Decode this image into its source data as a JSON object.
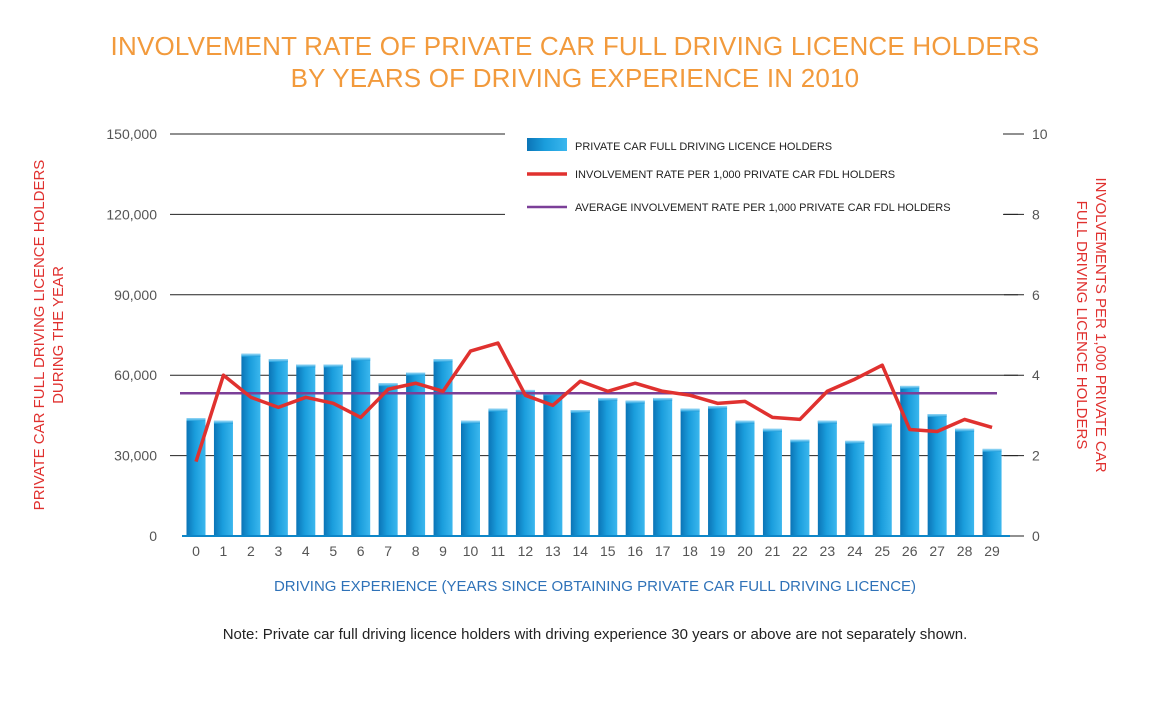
{
  "chart_data": {
    "type": "bar",
    "title_line1": "INVOLVEMENT RATE OF PRIVATE CAR FULL DRIVING LICENCE HOLDERS",
    "title_line2": "BY YEARS OF DRIVING EXPERIENCE IN 2010",
    "ylabel_left_line1": "PRIVATE CAR FULL DRIVING LICENCE HOLDERS",
    "ylabel_left_line2": "DURING THE YEAR",
    "ylabel_right_line1": "INVOLVEMENTS PER 1,000 PRIVATE CAR",
    "ylabel_right_line2": "FULL DRIVING LICENCE HOLDERS",
    "xlabel": "DRIVING EXPERIENCE (YEARS SINCE OBTAINING PRIVATE CAR FULL DRIVING LICENCE)",
    "note": "Note: Private car full driving licence holders with driving experience 30 years or above are not separately shown.",
    "categories": [
      "0",
      "1",
      "2",
      "3",
      "4",
      "5",
      "6",
      "7",
      "8",
      "9",
      "10",
      "11",
      "12",
      "13",
      "14",
      "15",
      "16",
      "17",
      "18",
      "19",
      "20",
      "21",
      "22",
      "23",
      "24",
      "25",
      "26",
      "27",
      "28",
      "29"
    ],
    "ylim_left": [
      0,
      150000
    ],
    "ylim_right": [
      0,
      10
    ],
    "left_ticks": [
      "0",
      "30,000",
      "60,000",
      "90,000",
      "120,000",
      "150,000"
    ],
    "left_tick_values": [
      0,
      30000,
      60000,
      90000,
      120000,
      150000
    ],
    "right_ticks": [
      "0",
      "2",
      "4",
      "6",
      "8",
      "10"
    ],
    "right_tick_values": [
      0,
      2,
      4,
      6,
      8,
      10
    ],
    "series": [
      {
        "name": "PRIVATE CAR FULL DRIVING LICENCE HOLDERS",
        "type": "bar",
        "axis": "left",
        "color": "#1a9ddc",
        "values": [
          44000,
          43000,
          68000,
          66000,
          64000,
          64000,
          66500,
          57000,
          61000,
          66000,
          43000,
          47500,
          54500,
          53500,
          47000,
          51500,
          50500,
          51500,
          47500,
          48500,
          43000,
          40000,
          36000,
          43000,
          35500,
          42000,
          56000,
          45500,
          40000,
          32500
        ]
      },
      {
        "name": "INVOLVEMENT RATE PER 1,000 PRIVATE CAR FDL HOLDERS",
        "type": "line",
        "axis": "right",
        "color": "#e0312f",
        "values": [
          1.85,
          4.0,
          3.45,
          3.2,
          3.45,
          3.3,
          2.95,
          3.65,
          3.8,
          3.6,
          4.6,
          4.8,
          3.5,
          3.25,
          3.85,
          3.6,
          3.8,
          3.6,
          3.5,
          3.3,
          3.35,
          2.95,
          2.9,
          3.6,
          3.9,
          4.25,
          2.65,
          2.6,
          2.9,
          2.7
        ]
      },
      {
        "name": "AVERAGE INVOLVEMENT RATE PER 1,000 PRIVATE CAR FDL HOLDERS",
        "type": "hline",
        "axis": "right",
        "color": "#7b3f98",
        "value": 3.55
      }
    ],
    "grid": true,
    "legend_position": "top-right"
  }
}
